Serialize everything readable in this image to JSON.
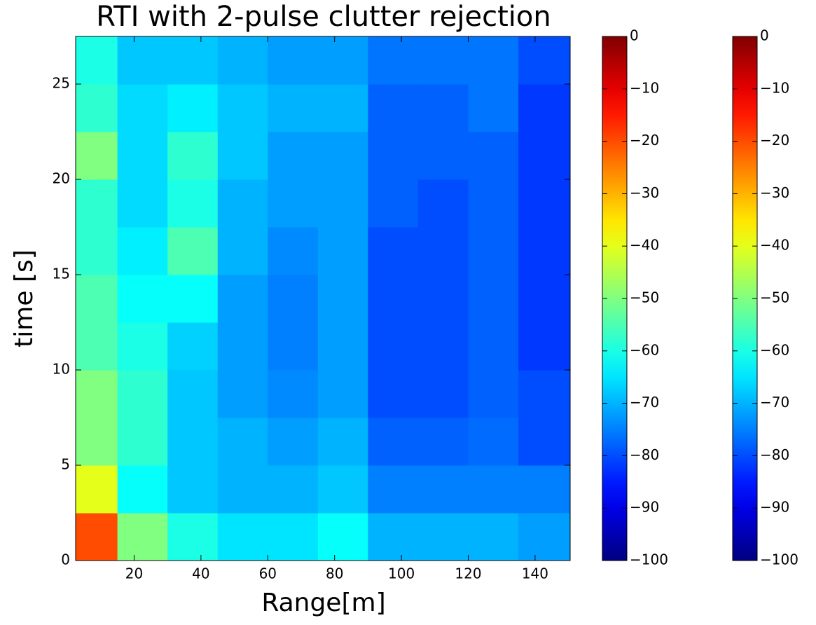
{
  "chart_data": {
    "type": "heatmap",
    "title": "RTI with 2-pulse clutter rejection",
    "xlabel": "Range[m]",
    "ylabel": "time [s]",
    "xlim": [
      2.5,
      150.5
    ],
    "ylim": [
      0,
      27.5
    ],
    "xticks": [
      20,
      40,
      60,
      80,
      100,
      120,
      140
    ],
    "yticks": [
      0,
      5,
      10,
      15,
      20,
      25
    ],
    "colormap": "jet",
    "xbins": [
      2.5,
      15,
      30,
      45,
      60,
      75,
      90,
      105,
      120,
      135,
      150.5
    ],
    "ybins": [
      0,
      2.5,
      5,
      7.5,
      10,
      12.5,
      15,
      17.5,
      20,
      22.5,
      25,
      27.5
    ],
    "z": [
      [
        -20,
        -50,
        -60,
        -65,
        -65,
        -62,
        -70,
        -70,
        -70,
        -72
      ],
      [
        -40,
        -62,
        -68,
        -70,
        -70,
        -68,
        -75,
        -75,
        -75,
        -75
      ],
      [
        -50,
        -58,
        -68,
        -70,
        -72,
        -70,
        -78,
        -78,
        -77,
        -80
      ],
      [
        -50,
        -58,
        -68,
        -72,
        -74,
        -72,
        -80,
        -80,
        -78,
        -80
      ],
      [
        -55,
        -60,
        -67,
        -72,
        -75,
        -72,
        -80,
        -80,
        -78,
        -82
      ],
      [
        -55,
        -62,
        -62,
        -72,
        -75,
        -72,
        -80,
        -80,
        -78,
        -82
      ],
      [
        -58,
        -64,
        -55,
        -70,
        -74,
        -72,
        -80,
        -80,
        -78,
        -82
      ],
      [
        -58,
        -66,
        -60,
        -70,
        -72,
        -72,
        -78,
        -80,
        -78,
        -82
      ],
      [
        -50,
        -66,
        -58,
        -68,
        -72,
        -72,
        -78,
        -78,
        -78,
        -82
      ],
      [
        -58,
        -66,
        -64,
        -68,
        -70,
        -70,
        -78,
        -78,
        -76,
        -82
      ],
      [
        -60,
        -68,
        -68,
        -70,
        -72,
        -72,
        -76,
        -76,
        -76,
        -80
      ]
    ],
    "colorbars": [
      {
        "clim": [
          -100,
          0
        ],
        "ticks": [
          0,
          {
            "value": -10,
            "label": "−10"
          },
          {
            "value": -20,
            "label": "−20"
          },
          {
            "value": -30,
            "label": "−30"
          },
          {
            "value": -40,
            "label": "−40"
          },
          {
            "value": -50,
            "label": "−50"
          },
          {
            "value": -60,
            "label": "−60"
          },
          {
            "value": -70,
            "label": "−70"
          },
          {
            "value": -80,
            "label": "−80"
          },
          {
            "value": -90,
            "label": "−90"
          },
          {
            "value": -100,
            "label": "−100"
          }
        ]
      },
      {
        "clim": [
          -100,
          0
        ],
        "ticks": [
          0,
          {
            "value": -10,
            "label": "−10"
          },
          {
            "value": -20,
            "label": "−20"
          },
          {
            "value": -30,
            "label": "−30"
          },
          {
            "value": -40,
            "label": "−40"
          },
          {
            "value": -50,
            "label": "−50"
          },
          {
            "value": -60,
            "label": "−60"
          },
          {
            "value": -70,
            "label": "−70"
          },
          {
            "value": -80,
            "label": "−80"
          },
          {
            "value": -90,
            "label": "−90"
          },
          {
            "value": -100,
            "label": "−100"
          }
        ]
      }
    ]
  }
}
